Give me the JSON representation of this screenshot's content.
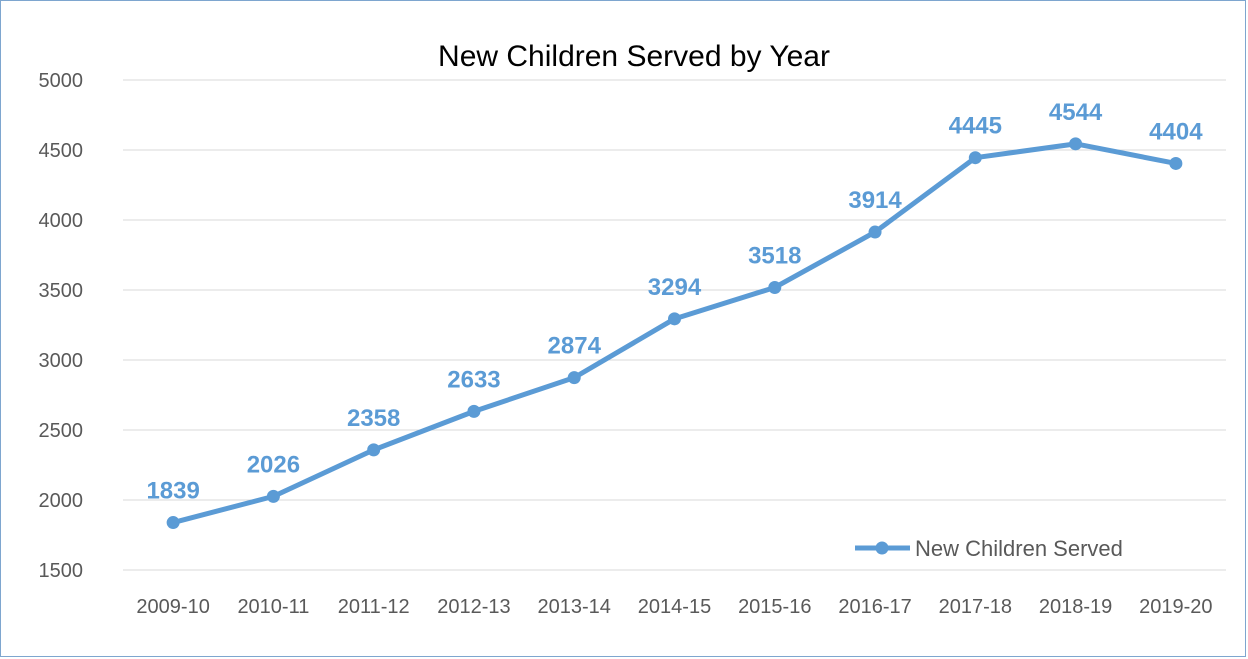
{
  "chart_data": {
    "type": "line",
    "title": "New Children Served by Year",
    "categories": [
      "2009-10",
      "2010-11",
      "2011-12",
      "2012-13",
      "2013-14",
      "2014-15",
      "2015-16",
      "2016-17",
      "2017-18",
      "2018-19",
      "2019-20"
    ],
    "series": [
      {
        "name": "New Children Served",
        "values": [
          1839,
          2026,
          2358,
          2633,
          2874,
          3294,
          3518,
          3914,
          4445,
          4544,
          4404
        ],
        "color": "#5b9bd5"
      }
    ],
    "ylim": [
      1500,
      5000
    ],
    "yticks": [
      1500,
      2000,
      2500,
      3000,
      3500,
      4000,
      4500,
      5000
    ],
    "grid": true,
    "legend": "bottom-right",
    "data_labels": true
  },
  "colors": {
    "series": "#5b9bd5",
    "grid": "#d9d9d9",
    "tick_text": "#595959",
    "frame": "#7ea6cf"
  }
}
